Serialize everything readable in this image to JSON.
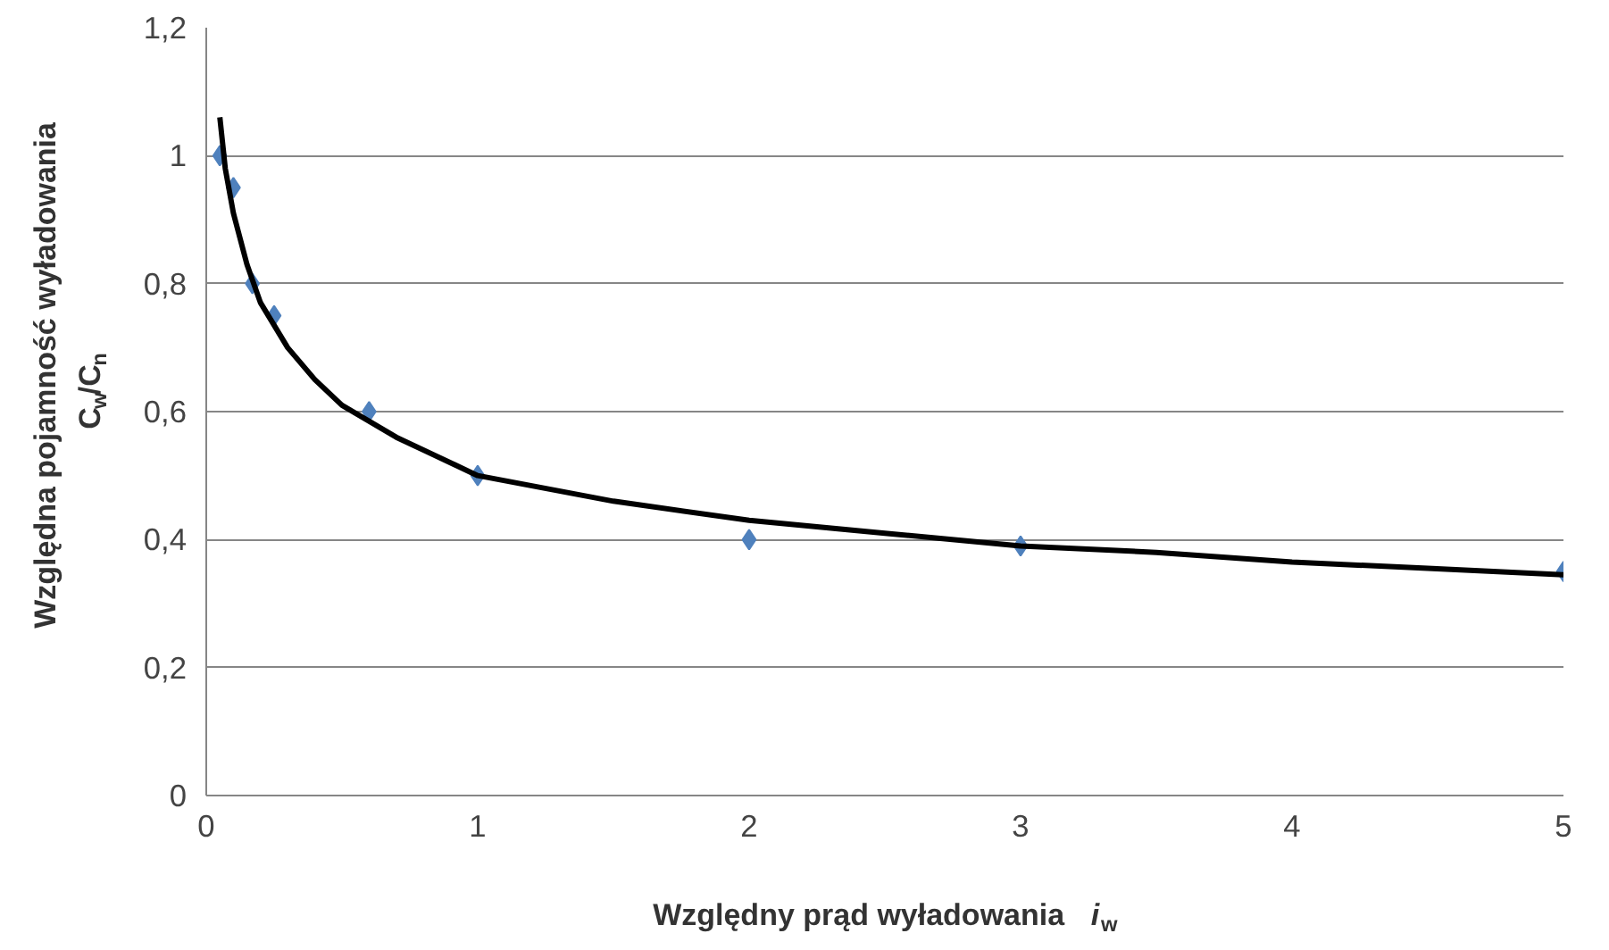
{
  "chart_data": {
    "type": "scatter",
    "xlabel": "Względny prąd wyładowania i$_{w}$",
    "ylabel": "Względna pojamność wyładowania C$_{w}$/C$_{n}$",
    "xlim": [
      0,
      5
    ],
    "ylim": [
      0,
      1.2
    ],
    "xticks": [
      0,
      1,
      2,
      3,
      4,
      5
    ],
    "yticks": [
      0,
      {
        "value": 0.2,
        "label": "0,2"
      },
      {
        "value": 0.4,
        "label": "0,4"
      },
      {
        "value": 0.6,
        "label": "0,6"
      },
      {
        "value": 0.8,
        "label": "0,8"
      },
      1,
      {
        "value": 1.2,
        "label": "1,2"
      }
    ],
    "grid": "y",
    "series": [
      {
        "color": "#4f81bd",
        "marker": "diamond",
        "x": [
          0.05,
          0.1,
          0.17,
          0.25,
          0.6,
          1,
          2,
          3,
          5
        ],
        "values": [
          1.0,
          0.95,
          0.8,
          0.75,
          0.6,
          0.5,
          0.4,
          0.39,
          0.35
        ]
      },
      {
        "type": "line",
        "color": "#000000",
        "x": [
          0.05,
          0.07,
          0.1,
          0.15,
          0.2,
          0.3,
          0.4,
          0.5,
          0.7,
          1,
          1.5,
          2,
          2.5,
          3,
          3.5,
          4,
          4.5,
          5
        ],
        "values": [
          1.06,
          0.98,
          0.91,
          0.83,
          0.77,
          0.7,
          0.65,
          0.61,
          0.56,
          0.5,
          0.46,
          0.43,
          0.41,
          0.39,
          0.38,
          0.365,
          0.355,
          0.345
        ]
      }
    ]
  }
}
